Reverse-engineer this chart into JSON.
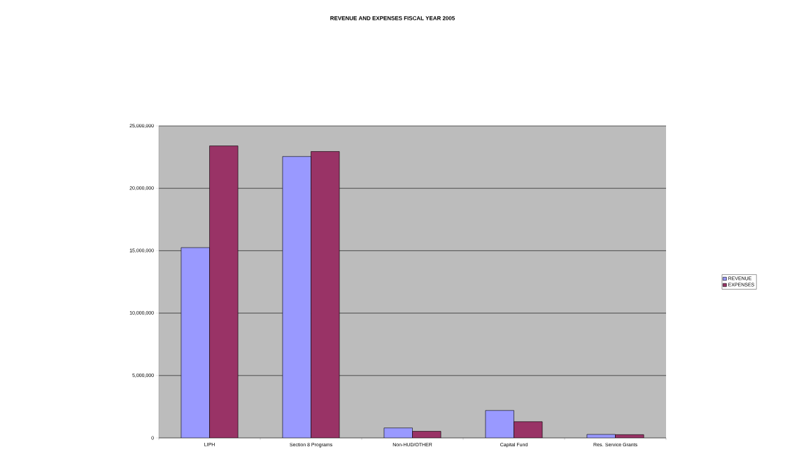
{
  "chart_data": {
    "type": "bar",
    "title": "REVENUE AND EXPENSES FISCAL YEAR 2005",
    "categories": [
      "LIPH",
      "Section 8 Programs",
      "Non-HUD/OTHER",
      "Capital Fund",
      "Res. Service Grants"
    ],
    "series": [
      {
        "name": "REVENUE",
        "color": "#9999ff",
        "values": [
          15250000,
          22550000,
          800000,
          2200000,
          280000
        ]
      },
      {
        "name": "EXPENSES",
        "color": "#993366",
        "values": [
          23400000,
          22950000,
          530000,
          1300000,
          260000
        ]
      }
    ],
    "ylim": [
      0,
      25000000
    ],
    "yticks": [
      {
        "value": 0,
        "label": "0"
      },
      {
        "value": 5000000,
        "label": "5,000,000"
      },
      {
        "value": 10000000,
        "label": "10,000,000"
      },
      {
        "value": 15000000,
        "label": "15,000,000"
      },
      {
        "value": 20000000,
        "label": "20,000,000"
      },
      {
        "value": 25000000,
        "label": "25,000,000"
      }
    ],
    "grid": "y",
    "legend": "right"
  }
}
